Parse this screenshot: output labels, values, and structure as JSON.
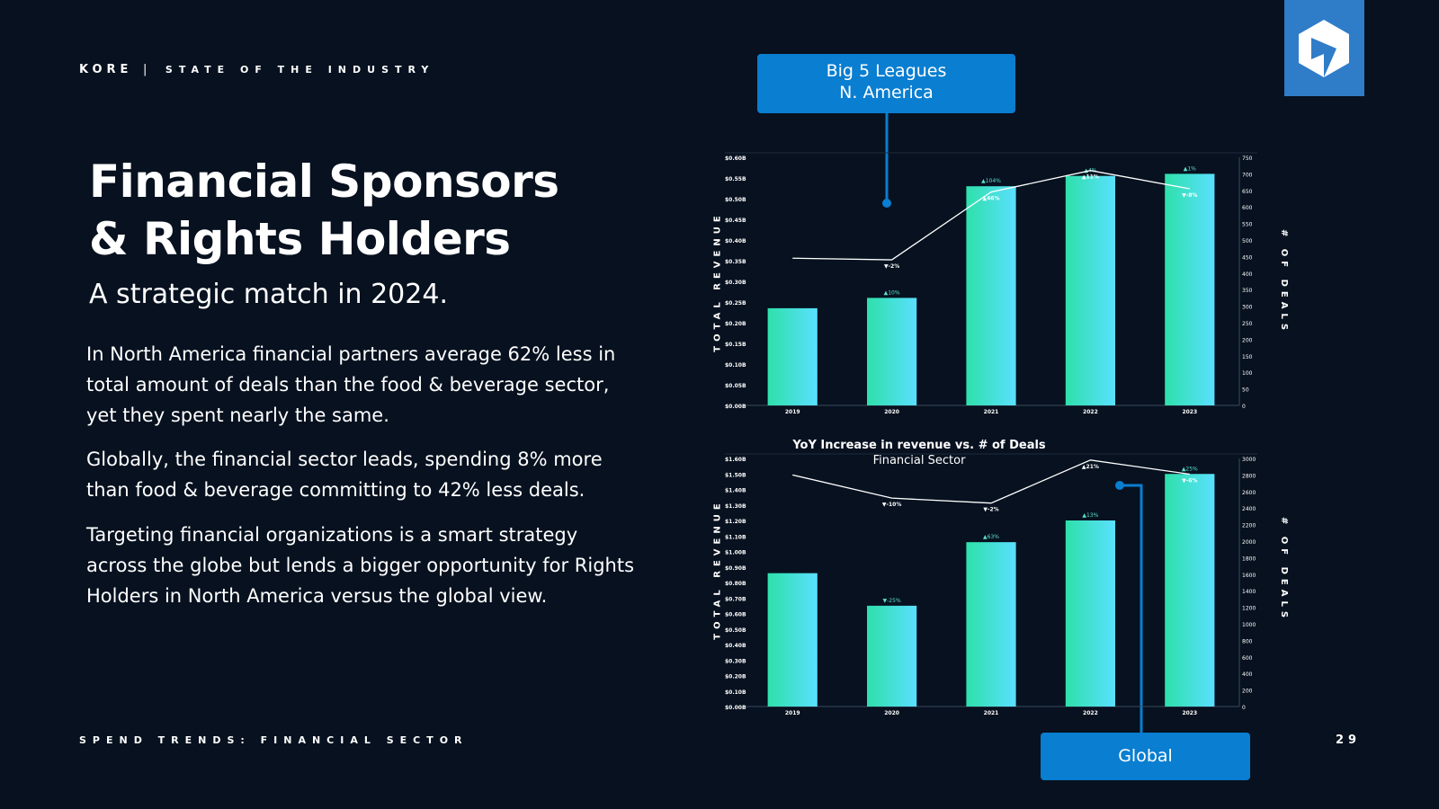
{
  "brand": {
    "name": "KORE",
    "separator": "|",
    "section": "STATE OF THE INDUSTRY"
  },
  "title_line1": "Financial Sponsors",
  "title_line2": "& Rights Holders",
  "subtitle": "A strategic match in 2024.",
  "paragraphs": [
    "In North America financial partners average 62% less in total amount of deals than the food & beverage sector, yet they spent nearly the same.",
    "Globally, the financial sector leads, spending 8% more than food & beverage committing to 42% less deals.",
    "Targeting financial organizations is a smart strategy across the globe but lends a bigger opportunity for Rights Holders in North America versus the global view."
  ],
  "footer": "SPEND TRENDS: FINANCIAL SECTOR",
  "page_number": "29",
  "callouts": {
    "top_line1": "Big 5 Leagues",
    "top_line2": "N. America",
    "bottom": "Global"
  },
  "colors": {
    "background": "#07111f",
    "bar_start": "#2ee0aa",
    "bar_end": "#5ae0ff",
    "callout": "#0a7ed0",
    "logo_box": "#2f7cc8"
  },
  "icons": {
    "logo": "kore-hexagon-logo-icon"
  },
  "chart_data": [
    {
      "type": "bar",
      "title": "",
      "ylabel": "TOTAL REVENUE",
      "y2label": "# OF DEALS",
      "categories": [
        "2019",
        "2020",
        "2021",
        "2022",
        "2023"
      ],
      "ylim": [
        0,
        0.6
      ],
      "y2lim": [
        0,
        750
      ],
      "yticks": [
        "$0.00B",
        "$0.05B",
        "$0.10B",
        "$0.15B",
        "$0.20B",
        "$0.25B",
        "$0.30B",
        "$0.35B",
        "$0.40B",
        "$0.45B",
        "$0.50B",
        "$0.55B",
        "$0.60B"
      ],
      "y2ticks": [
        "0",
        "50",
        "100",
        "150",
        "200",
        "250",
        "300",
        "350",
        "400",
        "450",
        "500",
        "550",
        "600",
        "650",
        "700",
        "750"
      ],
      "series": [
        {
          "values": [
            0.235,
            0.26,
            0.53,
            0.555,
            0.56
          ],
          "labels": [
            "",
            "▲10%",
            "▲104%",
            "▲4%",
            "▲1%"
          ]
        },
        {
          "values": [
            445,
            440,
            645,
            710,
            655
          ],
          "labels": [
            "",
            "▼-2%",
            "▲46%",
            "▲11%",
            "▼-8%"
          ]
        }
      ]
    },
    {
      "type": "bar",
      "title": "YoY Increase in revenue vs. # of Deals",
      "subtitle": "Financial Sector",
      "ylabel": "TOTAL REVENUE",
      "y2label": "# OF DEALS",
      "categories": [
        "2019",
        "2020",
        "2021",
        "2022",
        "2023"
      ],
      "ylim": [
        0,
        1.6
      ],
      "y2lim": [
        0,
        3000
      ],
      "yticks": [
        "$0.00B",
        "$0.10B",
        "$0.20B",
        "$0.30B",
        "$0.40B",
        "$0.50B",
        "$0.60B",
        "$0.70B",
        "$0.80B",
        "$0.90B",
        "$1.00B",
        "$1.10B",
        "$1.20B",
        "$1.30B",
        "$1.40B",
        "$1.50B",
        "$1.60B"
      ],
      "y2ticks": [
        "0",
        "200",
        "400",
        "600",
        "800",
        "1000",
        "1200",
        "1400",
        "1600",
        "1800",
        "2000",
        "2200",
        "2400",
        "2600",
        "2800",
        "3000"
      ],
      "series": [
        {
          "values": [
            0.86,
            0.65,
            1.06,
            1.2,
            1.5
          ],
          "labels": [
            "",
            "▼-25%",
            "▲63%",
            "▲13%",
            "▲25%"
          ]
        },
        {
          "values": [
            2800,
            2520,
            2460,
            2980,
            2810
          ],
          "labels": [
            "",
            "▼-10%",
            "▼-2%",
            "▲21%",
            "▼-6%"
          ]
        }
      ]
    }
  ]
}
